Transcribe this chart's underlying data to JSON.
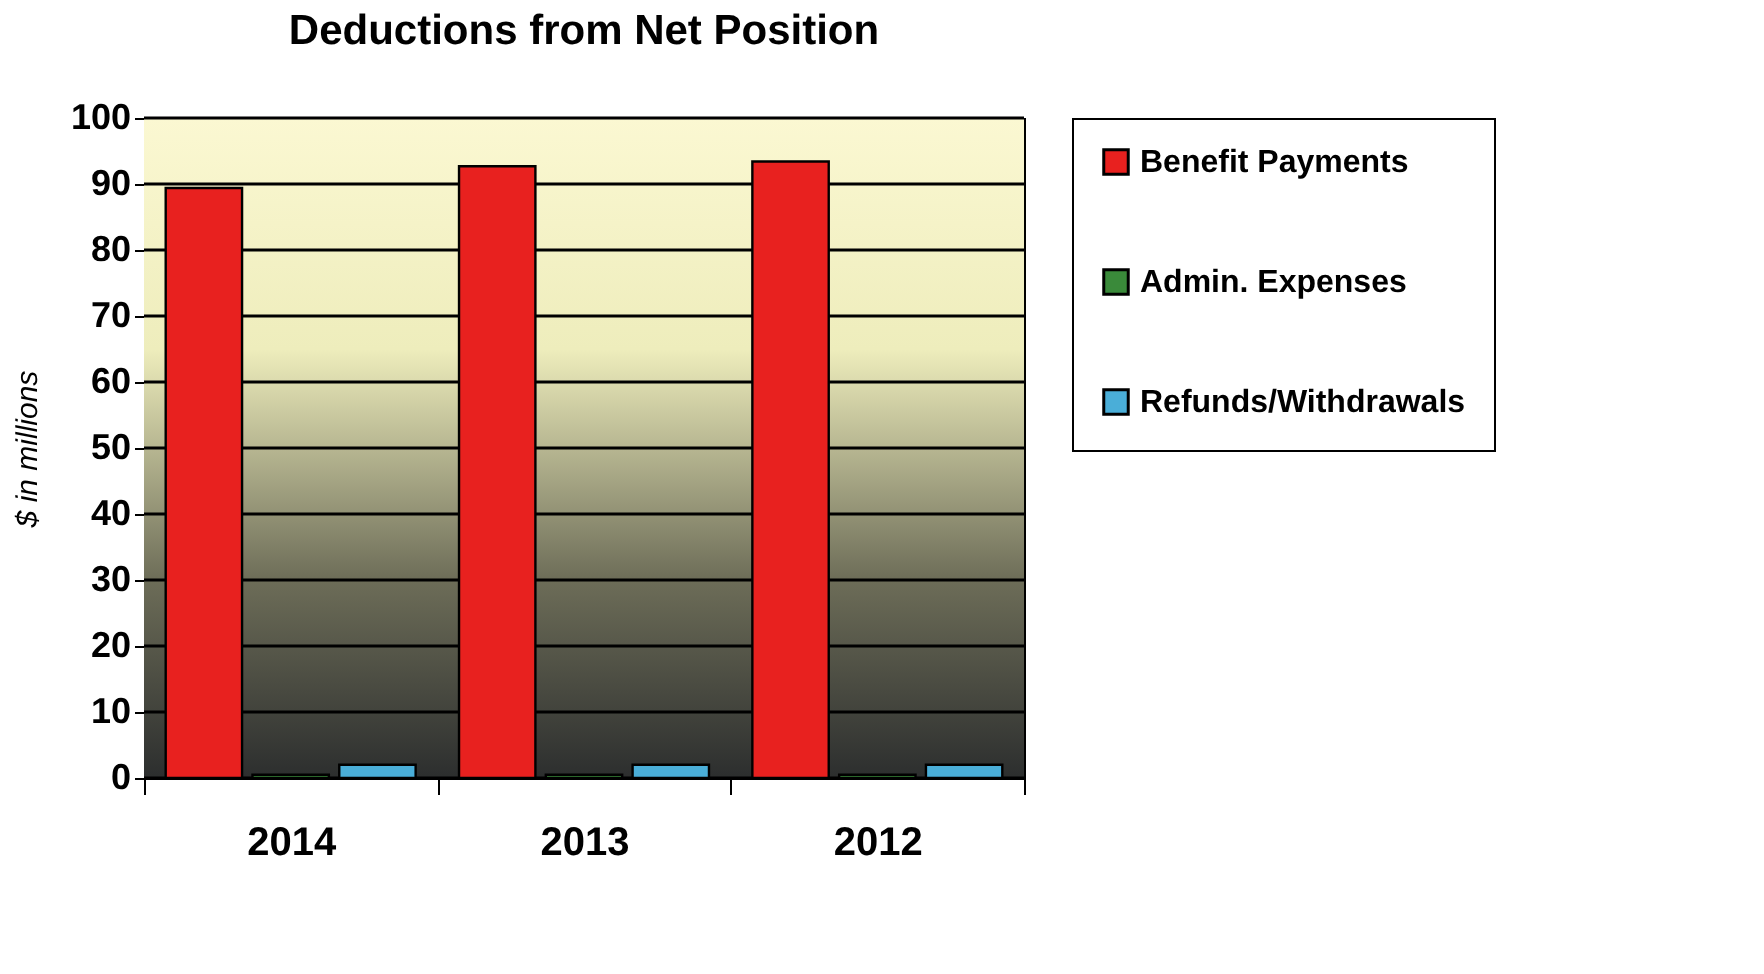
{
  "chart_data": {
    "type": "bar",
    "title": "Deductions from Net Position",
    "ylabel": "$ in millions",
    "categories": [
      "2014",
      "2013",
      "2012"
    ],
    "series": [
      {
        "name": "Benefit Payments",
        "color": "#e8211f",
        "values": [
          89.4,
          92.7,
          93.4
        ]
      },
      {
        "name": "Admin. Expenses",
        "color": "#3a8a3a",
        "values": [
          0.5,
          0.5,
          0.5
        ]
      },
      {
        "name": "Refunds/Withdrawals",
        "color": "#4aaed8",
        "values": [
          2.0,
          2.0,
          2.0
        ]
      }
    ],
    "ylim": [
      0,
      100
    ],
    "yticks": [
      0,
      10,
      20,
      30,
      40,
      50,
      60,
      70,
      80,
      90,
      100
    ],
    "grid": "y",
    "legend": "right"
  }
}
